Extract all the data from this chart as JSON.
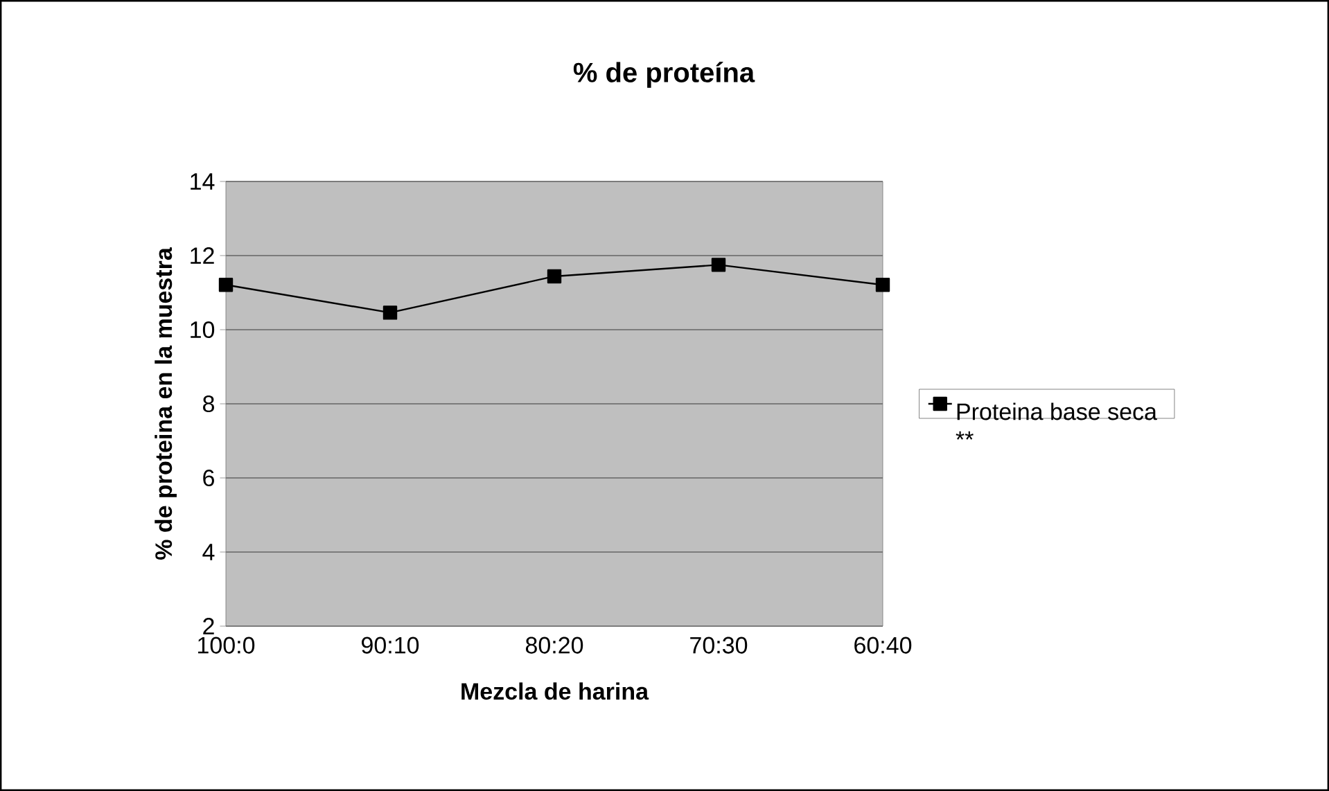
{
  "chart_data": {
    "type": "line",
    "title": "% de proteína",
    "xlabel": "Mezcla de harina",
    "ylabel": "% de proteina en la  muestra",
    "categories": [
      "100:0",
      "90:10",
      "80:20",
      "70:30",
      "60:40"
    ],
    "series": [
      {
        "name": "Proteina base seca **",
        "color": "#000000",
        "values": [
          11.21,
          10.46,
          11.44,
          11.75,
          11.21
        ]
      }
    ],
    "ylim": [
      2,
      14
    ],
    "yticks": [
      2,
      4,
      6,
      8,
      10,
      12,
      14
    ],
    "grid": "y",
    "legend": "right",
    "marker": "square",
    "line_style": "solid"
  }
}
